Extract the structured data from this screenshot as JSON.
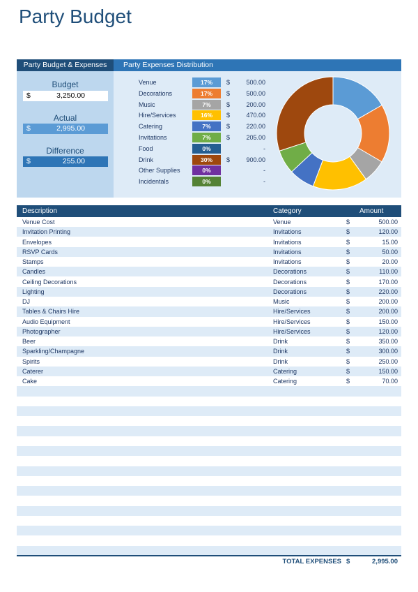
{
  "title": "Party Budget",
  "header": {
    "left": "Party Budget & Expenses",
    "right": "Party Expenses Distribution"
  },
  "summary": {
    "budget_label": "Budget",
    "budget_currency": "$",
    "budget_value": "3,250.00",
    "actual_label": "Actual",
    "actual_currency": "$",
    "actual_value": "2,995.00",
    "difference_label": "Difference",
    "difference_currency": "$",
    "difference_value": "255.00"
  },
  "distribution": [
    {
      "name": "Venue",
      "pct": "17%",
      "currency": "$",
      "amount": "500.00",
      "color": "#5b9bd5"
    },
    {
      "name": "Decorations",
      "pct": "17%",
      "currency": "$",
      "amount": "500.00",
      "color": "#ed7d31"
    },
    {
      "name": "Music",
      "pct": "7%",
      "currency": "$",
      "amount": "200.00",
      "color": "#a5a5a5"
    },
    {
      "name": "Hire/Services",
      "pct": "16%",
      "currency": "$",
      "amount": "470.00",
      "color": "#ffc000"
    },
    {
      "name": "Catering",
      "pct": "7%",
      "currency": "$",
      "amount": "220.00",
      "color": "#4472c4"
    },
    {
      "name": "Invitations",
      "pct": "7%",
      "currency": "$",
      "amount": "205.00",
      "color": "#70ad47"
    },
    {
      "name": "Food",
      "pct": "0%",
      "currency": "",
      "amount": "-",
      "color": "#255e91"
    },
    {
      "name": "Drink",
      "pct": "30%",
      "currency": "$",
      "amount": "900.00",
      "color": "#9e480e"
    },
    {
      "name": "Other Supplies",
      "pct": "0%",
      "currency": "",
      "amount": "-",
      "color": "#7030a0"
    },
    {
      "name": "Incidentals",
      "pct": "0%",
      "currency": "",
      "amount": "-",
      "color": "#548235"
    }
  ],
  "chart_data": {
    "type": "pie",
    "donut": true,
    "categories": [
      "Venue",
      "Decorations",
      "Music",
      "Hire/Services",
      "Catering",
      "Invitations",
      "Food",
      "Drink",
      "Other Supplies",
      "Incidentals"
    ],
    "values": [
      500,
      500,
      200,
      470,
      220,
      205,
      0,
      900,
      0,
      0
    ],
    "colors": [
      "#5b9bd5",
      "#ed7d31",
      "#a5a5a5",
      "#ffc000",
      "#4472c4",
      "#70ad47",
      "#255e91",
      "#9e480e",
      "#7030a0",
      "#548235"
    ]
  },
  "table": {
    "headers": {
      "description": "Description",
      "category": "Category",
      "amount": "Amount"
    },
    "rows": [
      {
        "description": "Venue Cost",
        "category": "Venue",
        "currency": "$",
        "amount": "500.00"
      },
      {
        "description": "Invitation Printing",
        "category": "Invitations",
        "currency": "$",
        "amount": "120.00"
      },
      {
        "description": "Envelopes",
        "category": "Invitations",
        "currency": "$",
        "amount": "15.00"
      },
      {
        "description": "RSVP Cards",
        "category": "Invitations",
        "currency": "$",
        "amount": "50.00"
      },
      {
        "description": "Stamps",
        "category": "Invitations",
        "currency": "$",
        "amount": "20.00"
      },
      {
        "description": "Candles",
        "category": "Decorations",
        "currency": "$",
        "amount": "110.00"
      },
      {
        "description": "Ceiling Decorations",
        "category": "Decorations",
        "currency": "$",
        "amount": "170.00"
      },
      {
        "description": "Lighting",
        "category": "Decorations",
        "currency": "$",
        "amount": "220.00"
      },
      {
        "description": "DJ",
        "category": "Music",
        "currency": "$",
        "amount": "200.00"
      },
      {
        "description": "Tables & Chairs Hire",
        "category": "Hire/Services",
        "currency": "$",
        "amount": "200.00"
      },
      {
        "description": "Audio Equipment",
        "category": "Hire/Services",
        "currency": "$",
        "amount": "150.00"
      },
      {
        "description": "Photographer",
        "category": "Hire/Services",
        "currency": "$",
        "amount": "120.00"
      },
      {
        "description": "Beer",
        "category": "Drink",
        "currency": "$",
        "amount": "350.00"
      },
      {
        "description": "Sparkling/Champagne",
        "category": "Drink",
        "currency": "$",
        "amount": "300.00"
      },
      {
        "description": "Spirits",
        "category": "Drink",
        "currency": "$",
        "amount": "250.00"
      },
      {
        "description": "Caterer",
        "category": "Catering",
        "currency": "$",
        "amount": "150.00"
      },
      {
        "description": "Cake",
        "category": "Catering",
        "currency": "$",
        "amount": "70.00"
      },
      {
        "description": "",
        "category": "",
        "currency": "",
        "amount": ""
      },
      {
        "description": "",
        "category": "",
        "currency": "",
        "amount": ""
      },
      {
        "description": "",
        "category": "",
        "currency": "",
        "amount": ""
      },
      {
        "description": "",
        "category": "",
        "currency": "",
        "amount": ""
      },
      {
        "description": "",
        "category": "",
        "currency": "",
        "amount": ""
      },
      {
        "description": "",
        "category": "",
        "currency": "",
        "amount": ""
      },
      {
        "description": "",
        "category": "",
        "currency": "",
        "amount": ""
      },
      {
        "description": "",
        "category": "",
        "currency": "",
        "amount": ""
      },
      {
        "description": "",
        "category": "",
        "currency": "",
        "amount": ""
      },
      {
        "description": "",
        "category": "",
        "currency": "",
        "amount": ""
      },
      {
        "description": "",
        "category": "",
        "currency": "",
        "amount": ""
      },
      {
        "description": "",
        "category": "",
        "currency": "",
        "amount": ""
      },
      {
        "description": "",
        "category": "",
        "currency": "",
        "amount": ""
      },
      {
        "description": "",
        "category": "",
        "currency": "",
        "amount": ""
      },
      {
        "description": "",
        "category": "",
        "currency": "",
        "amount": ""
      },
      {
        "description": "",
        "category": "",
        "currency": "",
        "amount": ""
      },
      {
        "description": "",
        "category": "",
        "currency": "",
        "amount": ""
      }
    ]
  },
  "total": {
    "label": "TOTAL EXPENSES",
    "currency": "$",
    "value": "2,995.00"
  }
}
